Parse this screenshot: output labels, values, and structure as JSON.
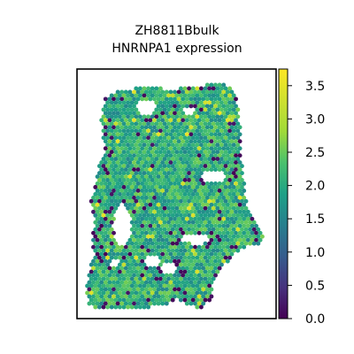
{
  "chart_data": {
    "type": "scatter",
    "title": "ZH8811Bbulk",
    "subtitle": "HNRNPA1 expression",
    "xlabel": "",
    "ylabel": "",
    "colorbar": {
      "label": "",
      "colormap": "viridis",
      "range": [
        0.0,
        3.75
      ],
      "ticks": [
        0.0,
        0.5,
        1.0,
        1.5,
        2.0,
        2.5,
        3.0,
        3.5
      ],
      "tick_labels": [
        "0.0",
        "0.5",
        "1.0",
        "1.5",
        "2.0",
        "2.5",
        "3.0",
        "3.5"
      ]
    },
    "axes": {
      "x_ticks": [],
      "y_ticks": [],
      "grid": false
    },
    "spots": {
      "description_value": "spatial transcriptomics spots",
      "dominant_value_range": [
        1.5,
        2.6
      ],
      "low_value": 0.0,
      "high_value": 3.6
    }
  }
}
